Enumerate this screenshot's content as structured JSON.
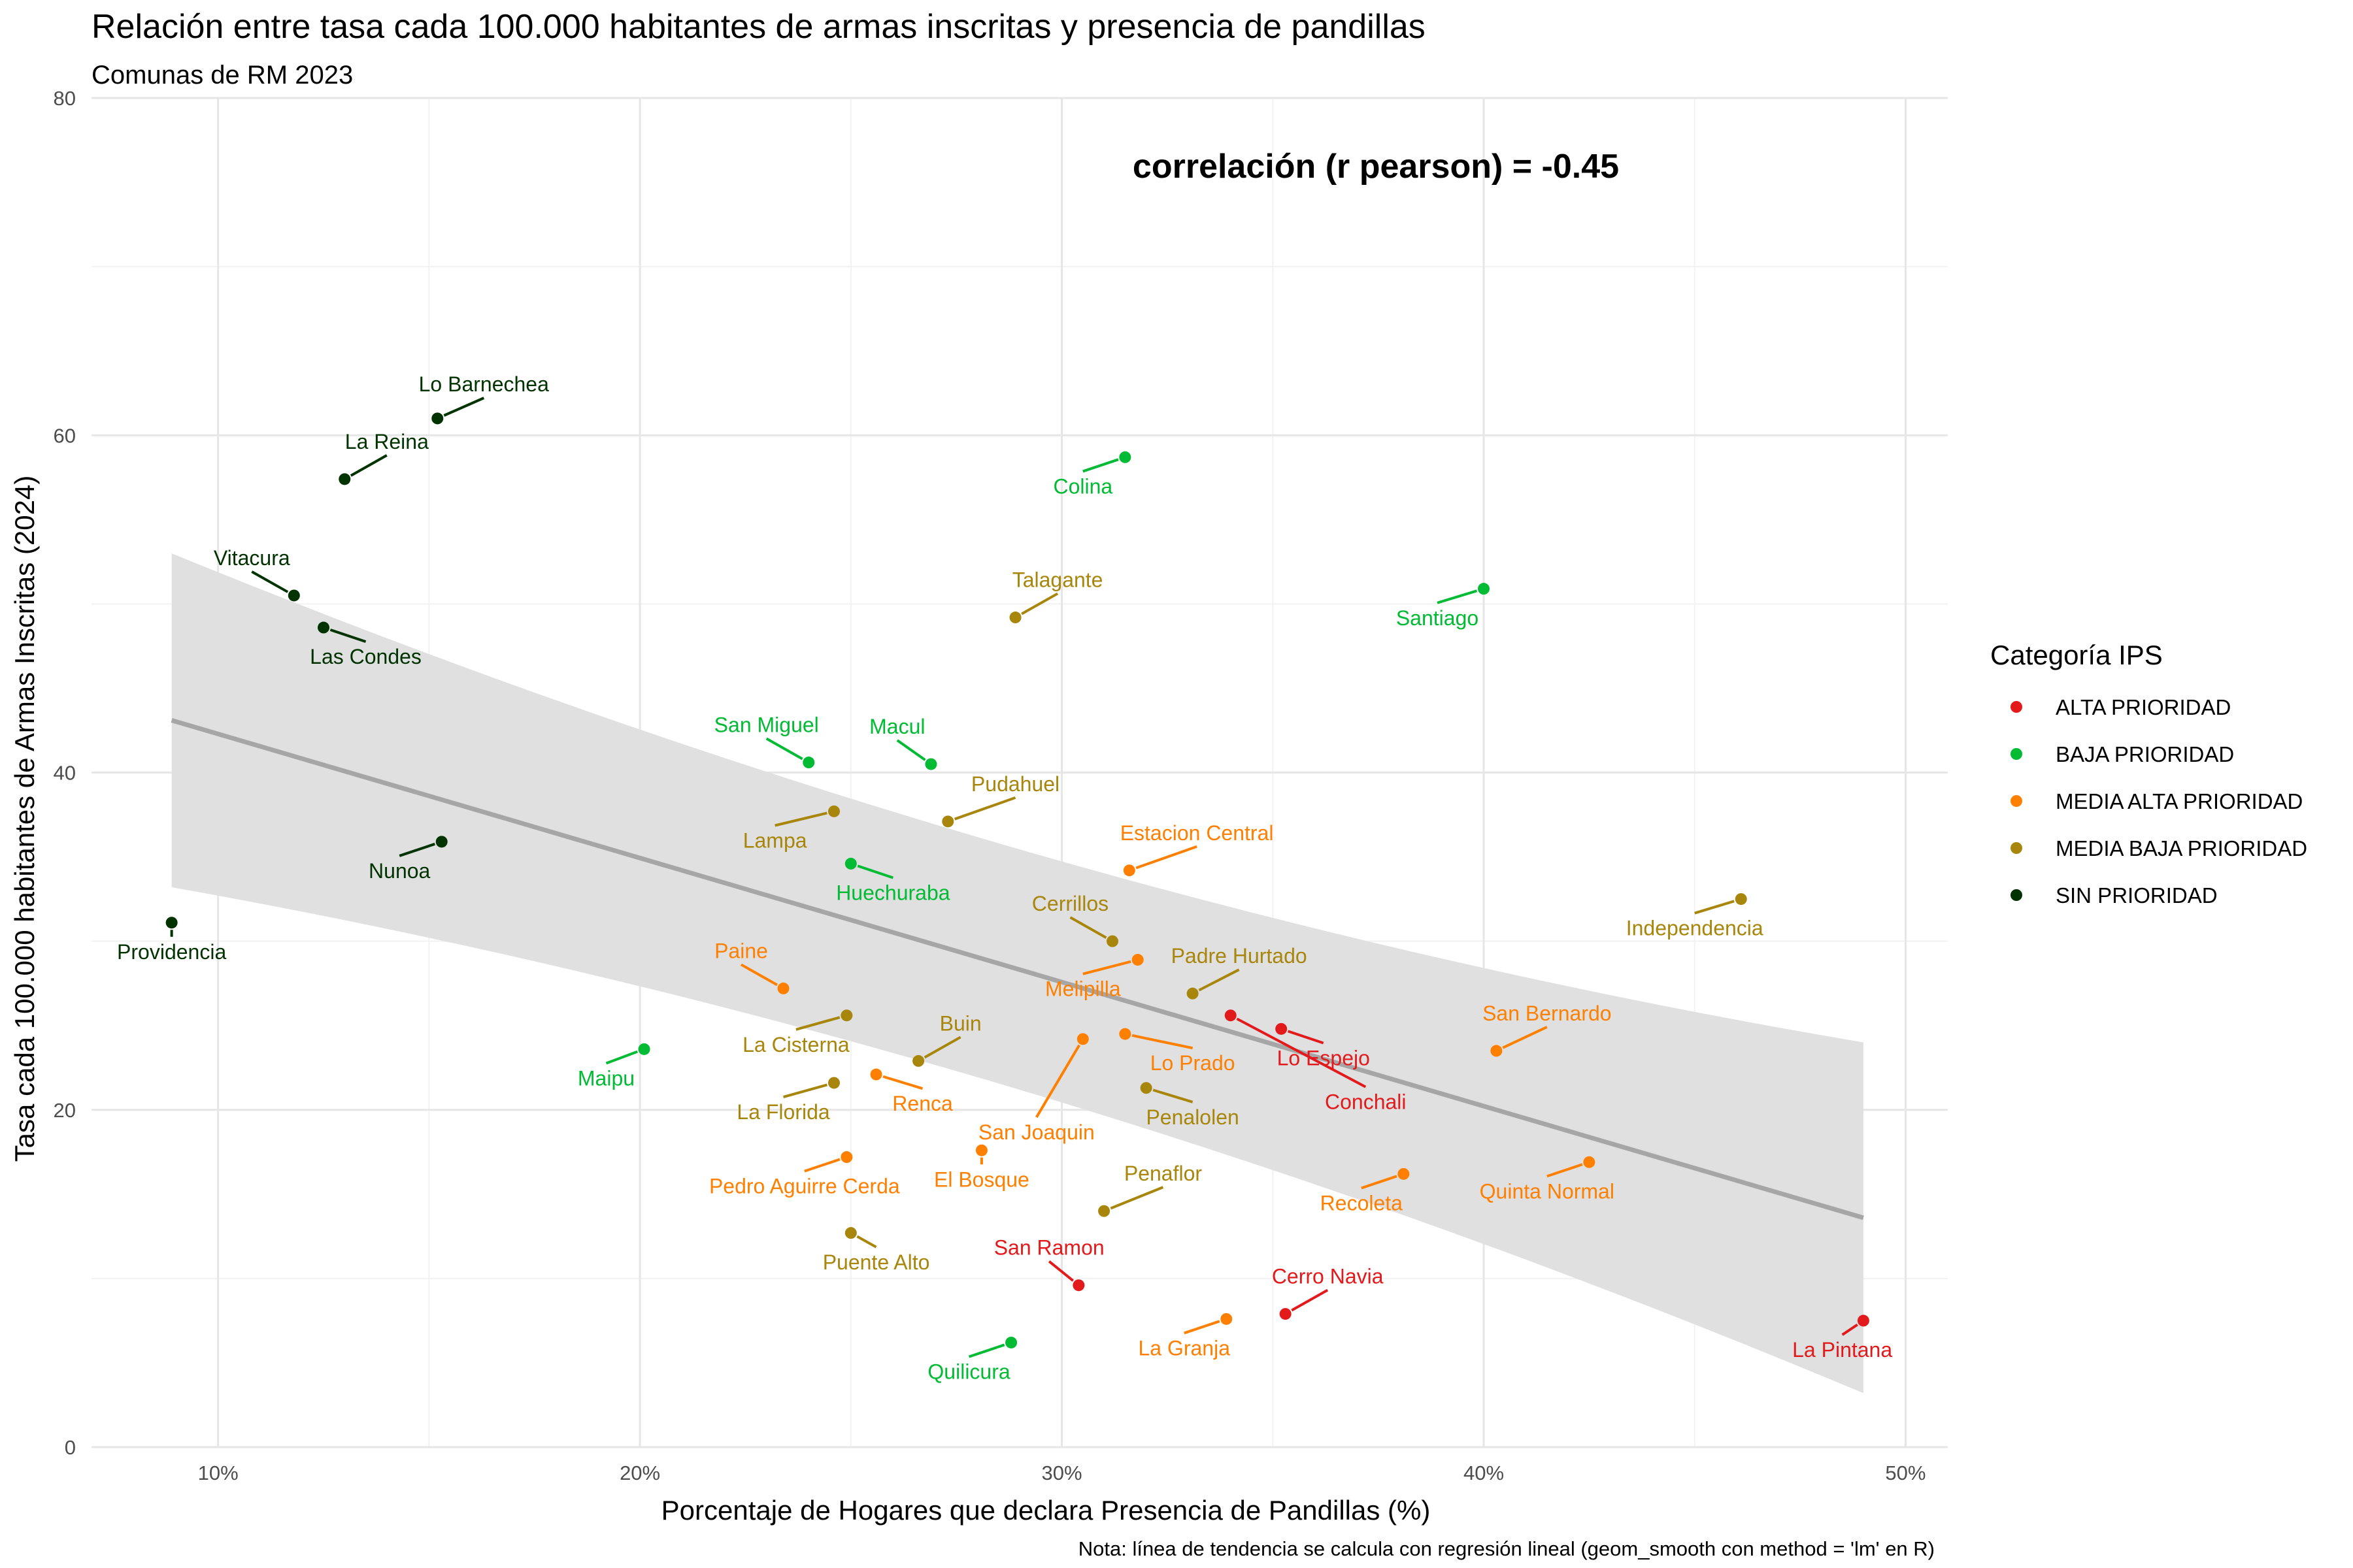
{
  "chart_data": {
    "type": "scatter",
    "title": "Relación entre tasa cada 100.000 habitantes de armas inscritas y presencia de pandillas",
    "subtitle": "Comunas de RM 2023",
    "xlabel": "Porcentaje de Hogares que declara Presencia de Pandillas (%)",
    "ylabel": "Tasa cada 100.000 habitantes de Armas Inscritas (2024)",
    "note": "Nota: línea de tendencia se calcula con regresión lineal (geom_smooth con method = 'lm' en R)",
    "annotation": "correlación (r pearson) = -0.45",
    "xlim": [
      0.07,
      0.51
    ],
    "ylim": [
      0,
      80
    ],
    "x_ticks": [
      {
        "value": 0.1,
        "label": "10%"
      },
      {
        "value": 0.2,
        "label": "20%"
      },
      {
        "value": 0.3,
        "label": "30%"
      },
      {
        "value": 0.4,
        "label": "40%"
      },
      {
        "value": 0.5,
        "label": "50%"
      }
    ],
    "y_ticks": [
      {
        "value": 0,
        "label": "0"
      },
      {
        "value": 20,
        "label": "20"
      },
      {
        "value": 40,
        "label": "40"
      },
      {
        "value": 60,
        "label": "60"
      },
      {
        "value": 80,
        "label": "80"
      }
    ],
    "grid": true,
    "legend": {
      "title": "Categoría IPS",
      "position": "right",
      "items": [
        {
          "key": "alta",
          "label": "ALTA PRIORIDAD",
          "color": "#e31a1c"
        },
        {
          "key": "baja",
          "label": "BAJA PRIORIDAD",
          "color": "#00bb33"
        },
        {
          "key": "media_alta",
          "label": "MEDIA ALTA PRIORIDAD",
          "color": "#ff7f00"
        },
        {
          "key": "media_baja",
          "label": "MEDIA BAJA PRIORIDAD",
          "color": "#a8860b"
        },
        {
          "key": "sin",
          "label": "SIN PRIORIDAD",
          "color": "#003300"
        }
      ]
    },
    "label_colors": {
      "alta": "#e31a1c",
      "baja": "#00bb33",
      "media_alta": "#ff7f00",
      "media_baja": "#a8860b",
      "sin": "#003300"
    },
    "trend": {
      "x": [
        0.089,
        0.49
      ],
      "y": [
        43.1,
        13.6
      ],
      "ci_upper": [
        53.0,
        24.0
      ],
      "ci_lower": [
        33.2,
        3.2
      ],
      "ci_mid": {
        "x": 0.289,
        "upper": 32.5,
        "lower": 24.3
      },
      "color": "#a6a6a6",
      "band_color": "#e0e0e0"
    },
    "points": [
      {
        "name": "Lo Barnechea",
        "x": 0.152,
        "y": 61.0,
        "cat": "sin",
        "dx": 0.011,
        "dy": 1.6
      },
      {
        "name": "La Reina",
        "x": 0.13,
        "y": 57.4,
        "cat": "sin",
        "dx": 0.01,
        "dy": 1.8
      },
      {
        "name": "Vitacura",
        "x": 0.118,
        "y": 50.5,
        "cat": "sin",
        "dx": -0.01,
        "dy": 1.8
      },
      {
        "name": "Las Condes",
        "x": 0.125,
        "y": 48.6,
        "cat": "sin",
        "dx": 0.01,
        "dy": -2.0
      },
      {
        "name": "Nunoa",
        "x": 0.153,
        "y": 35.9,
        "cat": "sin",
        "dx": -0.01,
        "dy": -2.0
      },
      {
        "name": "Providencia",
        "x": 0.089,
        "y": 31.1,
        "cat": "sin",
        "dx": 0.0,
        "dy": -2.0
      },
      {
        "name": "Colina",
        "x": 0.315,
        "y": 58.7,
        "cat": "baja",
        "dx": -0.01,
        "dy": -2.0
      },
      {
        "name": "Santiago",
        "x": 0.4,
        "y": 50.9,
        "cat": "baja",
        "dx": -0.011,
        "dy": -2.0
      },
      {
        "name": "San Miguel",
        "x": 0.24,
        "y": 40.6,
        "cat": "baja",
        "dx": -0.01,
        "dy": 1.8
      },
      {
        "name": "Macul",
        "x": 0.269,
        "y": 40.5,
        "cat": "baja",
        "dx": -0.008,
        "dy": 1.8
      },
      {
        "name": "Huechuraba",
        "x": 0.25,
        "y": 34.6,
        "cat": "baja",
        "dx": 0.01,
        "dy": -2.0
      },
      {
        "name": "Maipu",
        "x": 0.201,
        "y": 23.6,
        "cat": "baja",
        "dx": -0.009,
        "dy": -2.0
      },
      {
        "name": "Quilicura",
        "x": 0.288,
        "y": 6.2,
        "cat": "baja",
        "dx": -0.01,
        "dy": -2.0
      },
      {
        "name": "Talagante",
        "x": 0.289,
        "y": 49.2,
        "cat": "media_baja",
        "dx": 0.01,
        "dy": 1.8
      },
      {
        "name": "Pudahuel",
        "x": 0.273,
        "y": 37.1,
        "cat": "media_baja",
        "dx": 0.016,
        "dy": 1.8
      },
      {
        "name": "Lampa",
        "x": 0.246,
        "y": 37.7,
        "cat": "media_baja",
        "dx": -0.014,
        "dy": -2.0
      },
      {
        "name": "Cerrillos",
        "x": 0.312,
        "y": 30.0,
        "cat": "media_baja",
        "dx": -0.01,
        "dy": 1.8
      },
      {
        "name": "Padre Hurtado",
        "x": 0.331,
        "y": 26.9,
        "cat": "media_baja",
        "dx": 0.011,
        "dy": 1.8
      },
      {
        "name": "Independencia",
        "x": 0.461,
        "y": 32.5,
        "cat": "media_baja",
        "dx": -0.011,
        "dy": -2.0
      },
      {
        "name": "La Cisterna",
        "x": 0.249,
        "y": 25.6,
        "cat": "media_baja",
        "dx": -0.012,
        "dy": -2.0
      },
      {
        "name": "Buin",
        "x": 0.266,
        "y": 22.9,
        "cat": "media_baja",
        "dx": 0.01,
        "dy": 1.8
      },
      {
        "name": "La Florida",
        "x": 0.246,
        "y": 21.6,
        "cat": "media_baja",
        "dx": -0.012,
        "dy": -2.0
      },
      {
        "name": "Penalolen",
        "x": 0.32,
        "y": 21.3,
        "cat": "media_baja",
        "dx": 0.011,
        "dy": -2.0
      },
      {
        "name": "Penaflor",
        "x": 0.31,
        "y": 14.0,
        "cat": "media_baja",
        "dx": 0.014,
        "dy": 1.8
      },
      {
        "name": "Puente Alto",
        "x": 0.25,
        "y": 12.7,
        "cat": "media_baja",
        "dx": 0.006,
        "dy": -2.0
      },
      {
        "name": "Estacion Central",
        "x": 0.316,
        "y": 34.2,
        "cat": "media_alta",
        "dx": 0.016,
        "dy": 1.8
      },
      {
        "name": "Paine",
        "x": 0.234,
        "y": 27.2,
        "cat": "media_alta",
        "dx": -0.01,
        "dy": 1.8
      },
      {
        "name": "Melipilla",
        "x": 0.318,
        "y": 28.9,
        "cat": "media_alta",
        "dx": -0.013,
        "dy": -2.0
      },
      {
        "name": "Lo Prado",
        "x": 0.315,
        "y": 24.5,
        "cat": "media_alta",
        "dx": 0.016,
        "dy": -2.0
      },
      {
        "name": "San Joaquin",
        "x": 0.305,
        "y": 24.2,
        "cat": "media_alta",
        "dx": -0.011,
        "dy": -5.8
      },
      {
        "name": "Renca",
        "x": 0.256,
        "y": 22.1,
        "cat": "media_alta",
        "dx": 0.011,
        "dy": -2.0
      },
      {
        "name": "San Bernardo",
        "x": 0.403,
        "y": 23.5,
        "cat": "media_alta",
        "dx": 0.012,
        "dy": 1.8
      },
      {
        "name": "Recoleta",
        "x": 0.381,
        "y": 16.2,
        "cat": "media_alta",
        "dx": -0.01,
        "dy": -2.0
      },
      {
        "name": "Quinta Normal",
        "x": 0.425,
        "y": 16.9,
        "cat": "media_alta",
        "dx": -0.01,
        "dy": -2.0
      },
      {
        "name": "Pedro Aguirre Cerda",
        "x": 0.249,
        "y": 17.2,
        "cat": "media_alta",
        "dx": -0.01,
        "dy": -2.0
      },
      {
        "name": "El Bosque",
        "x": 0.281,
        "y": 17.6,
        "cat": "media_alta",
        "dx": 0.0,
        "dy": -2.0
      },
      {
        "name": "La Granja",
        "x": 0.339,
        "y": 7.6,
        "cat": "media_alta",
        "dx": -0.01,
        "dy": -2.0
      },
      {
        "name": "Lo Espejo",
        "x": 0.352,
        "y": 24.8,
        "cat": "alta",
        "dx": 0.01,
        "dy": -2.0
      },
      {
        "name": "Conchali",
        "x": 0.34,
        "y": 25.6,
        "cat": "alta",
        "dx": 0.032,
        "dy": -5.4
      },
      {
        "name": "San Ramon",
        "x": 0.304,
        "y": 9.6,
        "cat": "alta",
        "dx": -0.007,
        "dy": 1.8
      },
      {
        "name": "Cerro Navia",
        "x": 0.353,
        "y": 7.9,
        "cat": "alta",
        "dx": 0.01,
        "dy": 1.8
      },
      {
        "name": "La Pintana",
        "x": 0.49,
        "y": 7.5,
        "cat": "alta",
        "dx": -0.005,
        "dy": -2.0
      }
    ]
  }
}
